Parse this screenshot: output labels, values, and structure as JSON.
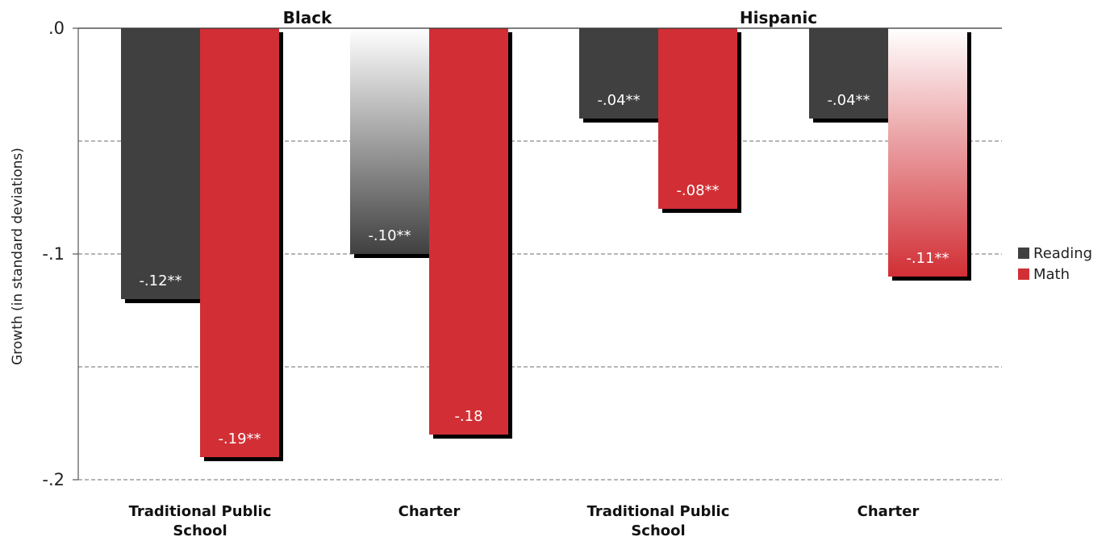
{
  "chart_data": {
    "type": "bar",
    "ylabel": "Growth (in standard deviations)",
    "ylim": [
      -0.2,
      0.0
    ],
    "yticks": [
      {
        "value": 0.0,
        "label": ".0"
      },
      {
        "value": -0.1,
        "label": "-.1"
      },
      {
        "value": -0.2,
        "label": "-.2"
      }
    ],
    "gridlines": [
      -0.05,
      -0.1,
      -0.15,
      -0.2
    ],
    "groups": [
      "Black",
      "Hispanic"
    ],
    "categories": [
      {
        "label_lines": [
          "Traditional Public",
          "School"
        ],
        "group": "Black"
      },
      {
        "label_lines": [
          "Charter"
        ],
        "group": "Black"
      },
      {
        "label_lines": [
          "Traditional Public",
          "School"
        ],
        "group": "Hispanic"
      },
      {
        "label_lines": [
          "Charter"
        ],
        "group": "Hispanic"
      }
    ],
    "series": [
      {
        "name": "Reading",
        "color": "#404040",
        "values": [
          -0.12,
          -0.1,
          -0.04,
          -0.04
        ],
        "labels": [
          "-.12**",
          "-.10**",
          "-.04**",
          "-.04**"
        ],
        "style": [
          "solid",
          "gradient",
          "solid",
          "solid"
        ]
      },
      {
        "name": "Math",
        "color": "#d12f35",
        "values": [
          -0.19,
          -0.18,
          -0.08,
          -0.11
        ],
        "labels": [
          "-.19**",
          "-.18",
          "-.08**",
          "-.11**"
        ],
        "style": [
          "solid",
          "solid",
          "solid",
          "gradient"
        ]
      }
    ],
    "legend": "right",
    "grid": true
  }
}
